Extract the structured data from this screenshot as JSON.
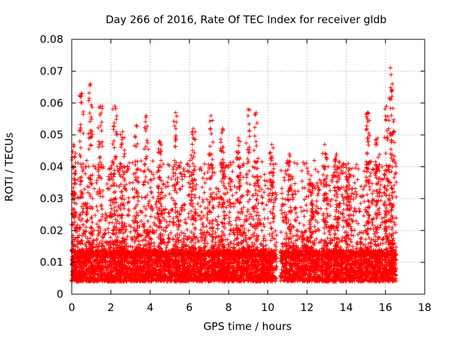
{
  "chart_data": {
    "type": "scatter",
    "title": "Day 266 of 2016, Rate Of TEC Index for receiver gldb",
    "xlabel": "GPS time / hours",
    "ylabel": "ROTI / TECUs",
    "xlim": [
      0,
      18
    ],
    "ylim": [
      0,
      0.08
    ],
    "xticks": [
      "0",
      "2",
      "4",
      "6",
      "8",
      "10",
      "12",
      "14",
      "16",
      "18"
    ],
    "yticks": [
      "0",
      "0.01",
      "0.02",
      "0.03",
      "0.04",
      "0.05",
      "0.06",
      "0.07",
      "0.08"
    ],
    "grid": true,
    "marker": "+",
    "color": "#ff0000",
    "data_time_range": [
      0.0,
      16.55
    ],
    "data_gap": [
      10.45,
      10.65
    ],
    "baseline_range": [
      0.004,
      0.013
    ],
    "peaks": [
      {
        "x": 0.1,
        "y": 0.047
      },
      {
        "x": 0.5,
        "y": 0.063
      },
      {
        "x": 0.95,
        "y": 0.066
      },
      {
        "x": 1.45,
        "y": 0.059
      },
      {
        "x": 2.2,
        "y": 0.059
      },
      {
        "x": 2.6,
        "y": 0.051
      },
      {
        "x": 3.3,
        "y": 0.053
      },
      {
        "x": 3.8,
        "y": 0.056
      },
      {
        "x": 4.5,
        "y": 0.048
      },
      {
        "x": 5.3,
        "y": 0.057
      },
      {
        "x": 6.2,
        "y": 0.052
      },
      {
        "x": 7.1,
        "y": 0.056
      },
      {
        "x": 7.7,
        "y": 0.052
      },
      {
        "x": 8.5,
        "y": 0.049
      },
      {
        "x": 9.0,
        "y": 0.058
      },
      {
        "x": 9.4,
        "y": 0.057
      },
      {
        "x": 10.2,
        "y": 0.047
      },
      {
        "x": 11.1,
        "y": 0.044
      },
      {
        "x": 12.2,
        "y": 0.035
      },
      {
        "x": 12.9,
        "y": 0.047
      },
      {
        "x": 13.5,
        "y": 0.044
      },
      {
        "x": 14.1,
        "y": 0.041
      },
      {
        "x": 15.1,
        "y": 0.057
      },
      {
        "x": 15.6,
        "y": 0.049
      },
      {
        "x": 16.05,
        "y": 0.059
      },
      {
        "x": 16.25,
        "y": 0.071
      },
      {
        "x": 16.35,
        "y": 0.066
      }
    ]
  }
}
